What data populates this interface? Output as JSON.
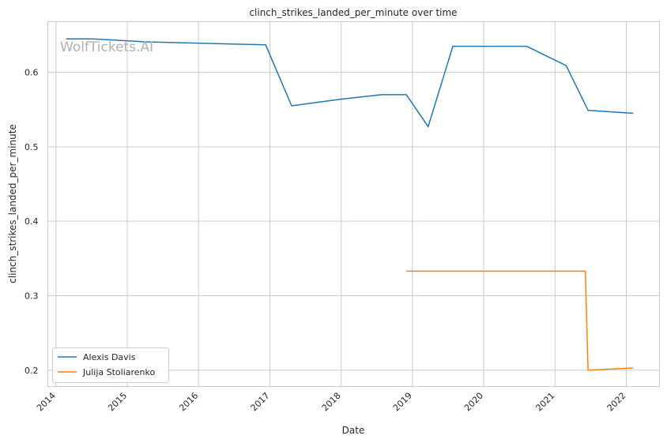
{
  "watermark": "WolfTickets.AI",
  "chart_data": {
    "type": "line",
    "title": "clinch_strikes_landed_per_minute over time",
    "xlabel": "Date",
    "ylabel": "clinch_strikes_landed_per_minute",
    "x_ticks": [
      "2014",
      "2015",
      "2016",
      "2017",
      "2018",
      "2019",
      "2020",
      "2021",
      "2022"
    ],
    "y_ticks": [
      "0.2",
      "0.3",
      "0.4",
      "0.5",
      "0.6"
    ],
    "xlim": [
      "2013-11-20",
      "2022-06-20"
    ],
    "ylim": [
      0.178,
      0.668
    ],
    "grid": true,
    "legend_position": "lower-left",
    "series": [
      {
        "name": "Alexis Davis",
        "color": "#1f77b4",
        "points": [
          {
            "x": "2014-02-22",
            "y": 0.645
          },
          {
            "x": "2014-07-05",
            "y": 0.645
          },
          {
            "x": "2015-04-04",
            "y": 0.641
          },
          {
            "x": "2016-12-10",
            "y": 0.637
          },
          {
            "x": "2017-04-22",
            "y": 0.555
          },
          {
            "x": "2017-12-30",
            "y": 0.564
          },
          {
            "x": "2018-07-28",
            "y": 0.57
          },
          {
            "x": "2018-12-01",
            "y": 0.57
          },
          {
            "x": "2019-03-23",
            "y": 0.527
          },
          {
            "x": "2019-07-27",
            "y": 0.635
          },
          {
            "x": "2020-08-08",
            "y": 0.635
          },
          {
            "x": "2021-02-27",
            "y": 0.609
          },
          {
            "x": "2021-06-19",
            "y": 0.549
          },
          {
            "x": "2022-02-05",
            "y": 0.545
          }
        ]
      },
      {
        "name": "Julija Stoliarenko",
        "color": "#ff7f0e",
        "points": [
          {
            "x": "2018-12-01",
            "y": 0.333
          },
          {
            "x": "2021-06-05",
            "y": 0.333
          },
          {
            "x": "2021-06-19",
            "y": 0.2
          },
          {
            "x": "2022-02-05",
            "y": 0.203
          }
        ]
      }
    ]
  }
}
